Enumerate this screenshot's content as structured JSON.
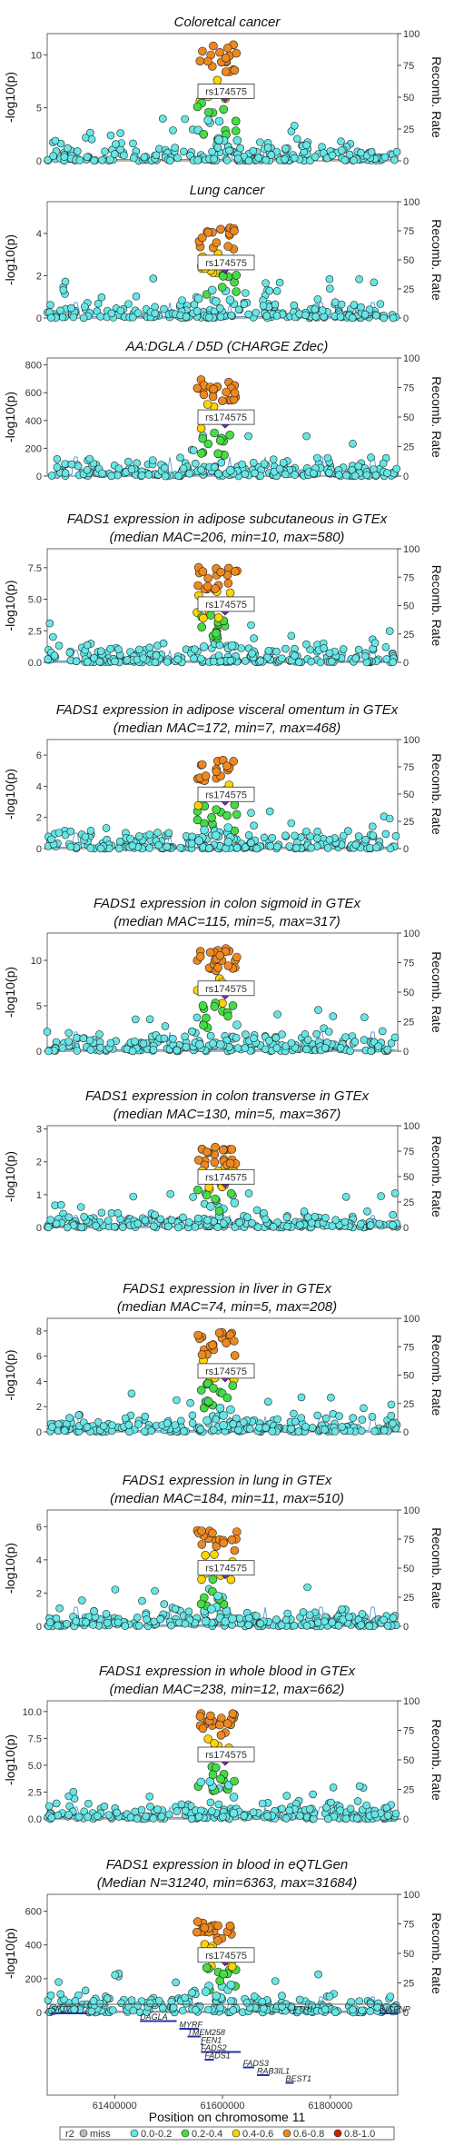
{
  "figure": {
    "right_axis_label": "Recomb. Rate",
    "recomb_ticks": [
      "0",
      "25",
      "50",
      "75",
      "100"
    ],
    "lead_snp": "rs174575",
    "x_axis_label": "Position on chromosome 11",
    "x_ticks": [
      "61400000",
      "61600000",
      "61800000"
    ],
    "legend": {
      "title": "r2",
      "entries": [
        {
          "label": "miss",
          "color": "#bbbbbb"
        },
        {
          "label": "0.0-0.2",
          "color": "#66e6e6"
        },
        {
          "label": "0.2-0.4",
          "color": "#44dd44"
        },
        {
          "label": "0.4-0.6",
          "color": "#ffd400"
        },
        {
          "label": "0.6-0.8",
          "color": "#ee8820"
        },
        {
          "label": "0.8-1.0",
          "color": "#cc2200"
        }
      ]
    },
    "genes": [
      {
        "name": "SYT7",
        "row": 0,
        "start": 61281000,
        "end": 61349000
      },
      {
        "name": "FTH1",
        "row": 0,
        "start": 61731000,
        "end": 61735000
      },
      {
        "name": "INCENP",
        "row": 0,
        "start": 61891000,
        "end": 61925000
      },
      {
        "name": "DAGLA",
        "row": 1,
        "start": 61447000,
        "end": 61515000
      },
      {
        "name": "MYRF",
        "row": 2,
        "start": 61520000,
        "end": 61556000
      },
      {
        "name": "TMEM258",
        "row": 3,
        "start": 61535000,
        "end": 61560000
      },
      {
        "name": "FEN1",
        "row": 4,
        "start": 61560000,
        "end": 61564000
      },
      {
        "name": "FADS2",
        "row": 5,
        "start": 61560000,
        "end": 61634000
      },
      {
        "name": "FADS1",
        "row": 6,
        "start": 61567000,
        "end": 61584000
      },
      {
        "name": "FADS3",
        "row": 7,
        "start": 61638000,
        "end": 61659000
      },
      {
        "name": "RAB3IL1",
        "row": 8,
        "start": 61664000,
        "end": 61687000
      },
      {
        "name": "BEST1",
        "row": 9,
        "start": 61717000,
        "end": 61732000
      }
    ]
  },
  "chart_data": [
    {
      "type": "scatter",
      "title": "Coloretcal cancer",
      "title2": "",
      "ylabel": "-log10(p)",
      "ylim": [
        0,
        12
      ],
      "yticks": [
        "0",
        "5",
        "10"
      ],
      "peak": 11.0,
      "xlim": [
        61275000,
        61925000
      ]
    },
    {
      "type": "scatter",
      "title": "Lung cancer",
      "title2": "",
      "ylabel": "-log10(p)",
      "ylim": [
        0,
        5.5
      ],
      "yticks": [
        "0",
        "2",
        "4"
      ],
      "peak": 4.3,
      "xlim": [
        61275000,
        61925000
      ]
    },
    {
      "type": "scatter",
      "title": "AA:DGLA / D5D (CHARGE Zdec)",
      "title2": "",
      "ylabel": "-log10(p)",
      "ylim": [
        0,
        850
      ],
      "yticks": [
        "0",
        "200",
        "400",
        "600",
        "800"
      ],
      "peak": 700,
      "xlim": [
        61275000,
        61925000
      ]
    },
    {
      "type": "scatter",
      "title": "FADS1 expression in adipose subcutaneous in GTEx",
      "title2": "(median MAC=206, min=10, max=580)",
      "ylabel": "-log10(p)",
      "ylim": [
        0,
        9
      ],
      "yticks": [
        "0.0",
        "2.5",
        "5.0",
        "7.5"
      ],
      "peak": 7.6,
      "xlim": [
        61275000,
        61925000
      ]
    },
    {
      "type": "scatter",
      "title": "FADS1 expression in adipose visceral omentum in GTEx",
      "title2": "(median MAC=172, min=7, max=468)",
      "ylabel": "-log10(p)",
      "ylim": [
        0,
        7
      ],
      "yticks": [
        "0",
        "2",
        "4",
        "6"
      ],
      "peak": 5.7,
      "xlim": [
        61275000,
        61925000
      ]
    },
    {
      "type": "scatter",
      "title": "FADS1 expression in colon sigmoid in GTEx",
      "title2": "(median MAC=115, min=5, max=317)",
      "ylabel": "-log10(p)",
      "ylim": [
        0,
        13
      ],
      "yticks": [
        "0",
        "5",
        "10"
      ],
      "peak": 11.5,
      "xlim": [
        61275000,
        61925000
      ]
    },
    {
      "type": "scatter",
      "title": "FADS1 expression in colon transverse in GTEx",
      "title2": "(median MAC=130, min=5, max=367)",
      "ylabel": "-log10(p)",
      "ylim": [
        0,
        3.1
      ],
      "yticks": [
        "0",
        "1",
        "2",
        "3"
      ],
      "peak": 2.5,
      "xlim": [
        61275000,
        61925000
      ]
    },
    {
      "type": "scatter",
      "title": "FADS1 expression in liver in GTEx",
      "title2": "(median MAC=74, min=5, max=208)",
      "ylabel": "-log10(p)",
      "ylim": [
        0,
        9
      ],
      "yticks": [
        "0",
        "2",
        "4",
        "6",
        "8"
      ],
      "peak": 8.0,
      "xlim": [
        61275000,
        61925000
      ]
    },
    {
      "type": "scatter",
      "title": "FADS1 expression in lung in GTEx",
      "title2": "(median MAC=184, min=11, max=510)",
      "ylabel": "-log10(p)",
      "ylim": [
        0,
        7
      ],
      "yticks": [
        "0",
        "2",
        "4",
        "6"
      ],
      "peak": 5.8,
      "xlim": [
        61275000,
        61925000
      ]
    },
    {
      "type": "scatter",
      "title": "FADS1 expression in whole blood in GTEx",
      "title2": "(median MAC=238, min=12, max=662)",
      "ylabel": "-log10(p)",
      "ylim": [
        0,
        11
      ],
      "yticks": [
        "0.0",
        "2.5",
        "5.0",
        "7.5",
        "10.0"
      ],
      "peak": 10.0,
      "xlim": [
        61275000,
        61925000
      ]
    },
    {
      "type": "scatter",
      "title": "FADS1 expression in blood in eQTLGen",
      "title2": "(Median N=31240, min=6363, max=31684)",
      "ylabel": "-log10(p)",
      "ylim": [
        0,
        700
      ],
      "yticks": [
        "0",
        "200",
        "400",
        "600"
      ],
      "peak": 560,
      "xlim": [
        61275000,
        61925000
      ]
    }
  ]
}
